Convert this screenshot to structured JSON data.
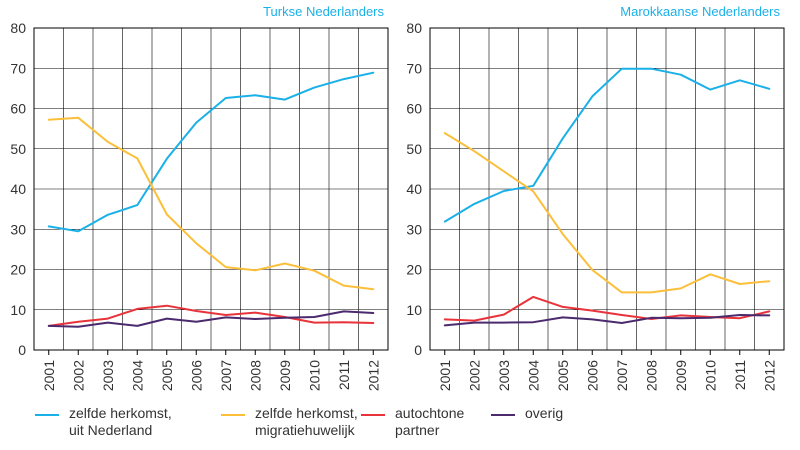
{
  "chart_data": [
    {
      "type": "line",
      "title": "Turkse Nederlanders",
      "categories": [
        "2001",
        "2002",
        "2003",
        "2004",
        "2005",
        "2006",
        "2007",
        "2008",
        "2009",
        "2010",
        "2011",
        "2012"
      ],
      "ylim": [
        0,
        80
      ],
      "yticks": [
        "0",
        "10",
        "20",
        "30",
        "40",
        "50",
        "60",
        "70",
        "80"
      ],
      "grid": true,
      "series": [
        {
          "name": "zelfde herkomst,\nuit Nederland",
          "color": "#1ab0e8",
          "values": [
            30.7,
            29.5,
            33.6,
            36.0,
            47.5,
            56.5,
            62.6,
            63.3,
            62.2,
            65.2,
            67.3,
            68.9
          ]
        },
        {
          "name": "zelfde herkomst,\nmigratiehuwelijk",
          "color": "#fbbf3a",
          "values": [
            57.2,
            57.7,
            51.7,
            47.6,
            33.7,
            26.5,
            20.6,
            19.8,
            21.5,
            19.7,
            16.0,
            15.1
          ]
        },
        {
          "name": "autochtone\npartner",
          "color": "#e8333a",
          "values": [
            6.0,
            7.0,
            7.8,
            10.2,
            11.0,
            9.7,
            8.7,
            9.3,
            8.2,
            6.8,
            6.9,
            6.7
          ]
        },
        {
          "name": "overig",
          "color": "#4b2a6e",
          "values": [
            6.0,
            5.8,
            6.8,
            6.0,
            7.8,
            7.0,
            8.1,
            7.7,
            8.0,
            8.2,
            9.6,
            9.2
          ]
        }
      ]
    },
    {
      "type": "line",
      "title": "Marokkaanse Nederlanders",
      "categories": [
        "2001",
        "2002",
        "2003",
        "2004",
        "2005",
        "2006",
        "2007",
        "2008",
        "2009",
        "2010",
        "2011",
        "2012"
      ],
      "ylim": [
        0,
        80
      ],
      "yticks": [
        "0",
        "10",
        "20",
        "30",
        "40",
        "50",
        "60",
        "70",
        "80"
      ],
      "grid": true,
      "series": [
        {
          "name": "zelfde herkomst,\nuit Nederland",
          "color": "#1ab0e8",
          "values": [
            31.9,
            36.3,
            39.5,
            40.8,
            52.6,
            63.0,
            69.9,
            69.9,
            68.4,
            64.7,
            67.0,
            64.9
          ]
        },
        {
          "name": "zelfde herkomst,\nmigratiehuwelijk",
          "color": "#fbbf3a",
          "values": [
            53.9,
            49.4,
            44.4,
            39.4,
            28.8,
            19.9,
            14.3,
            14.3,
            15.3,
            18.8,
            16.4,
            17.1
          ]
        },
        {
          "name": "autochtone\npartner",
          "color": "#e8333a",
          "values": [
            7.6,
            7.3,
            8.8,
            13.2,
            10.7,
            9.8,
            8.7,
            7.7,
            8.6,
            8.2,
            7.9,
            9.6
          ]
        },
        {
          "name": "overig",
          "color": "#4b2a6e",
          "values": [
            6.1,
            6.8,
            6.8,
            6.9,
            8.1,
            7.6,
            6.7,
            8.0,
            7.9,
            8.0,
            8.7,
            8.6
          ]
        }
      ]
    }
  ],
  "legend": {
    "items": [
      {
        "label": "zelfde herkomst,\nuit Nederland",
        "color": "#1ab0e8"
      },
      {
        "label": "zelfde herkomst,\nmigratiehuwelijk",
        "color": "#fbbf3a"
      },
      {
        "label": "autochtone\npartner",
        "color": "#e8333a"
      },
      {
        "label": "overig",
        "color": "#4b2a6e"
      }
    ]
  },
  "colors": {
    "title": "#1ab0e8",
    "grid": "#000000",
    "axis": "#000000",
    "text": "#333333"
  }
}
